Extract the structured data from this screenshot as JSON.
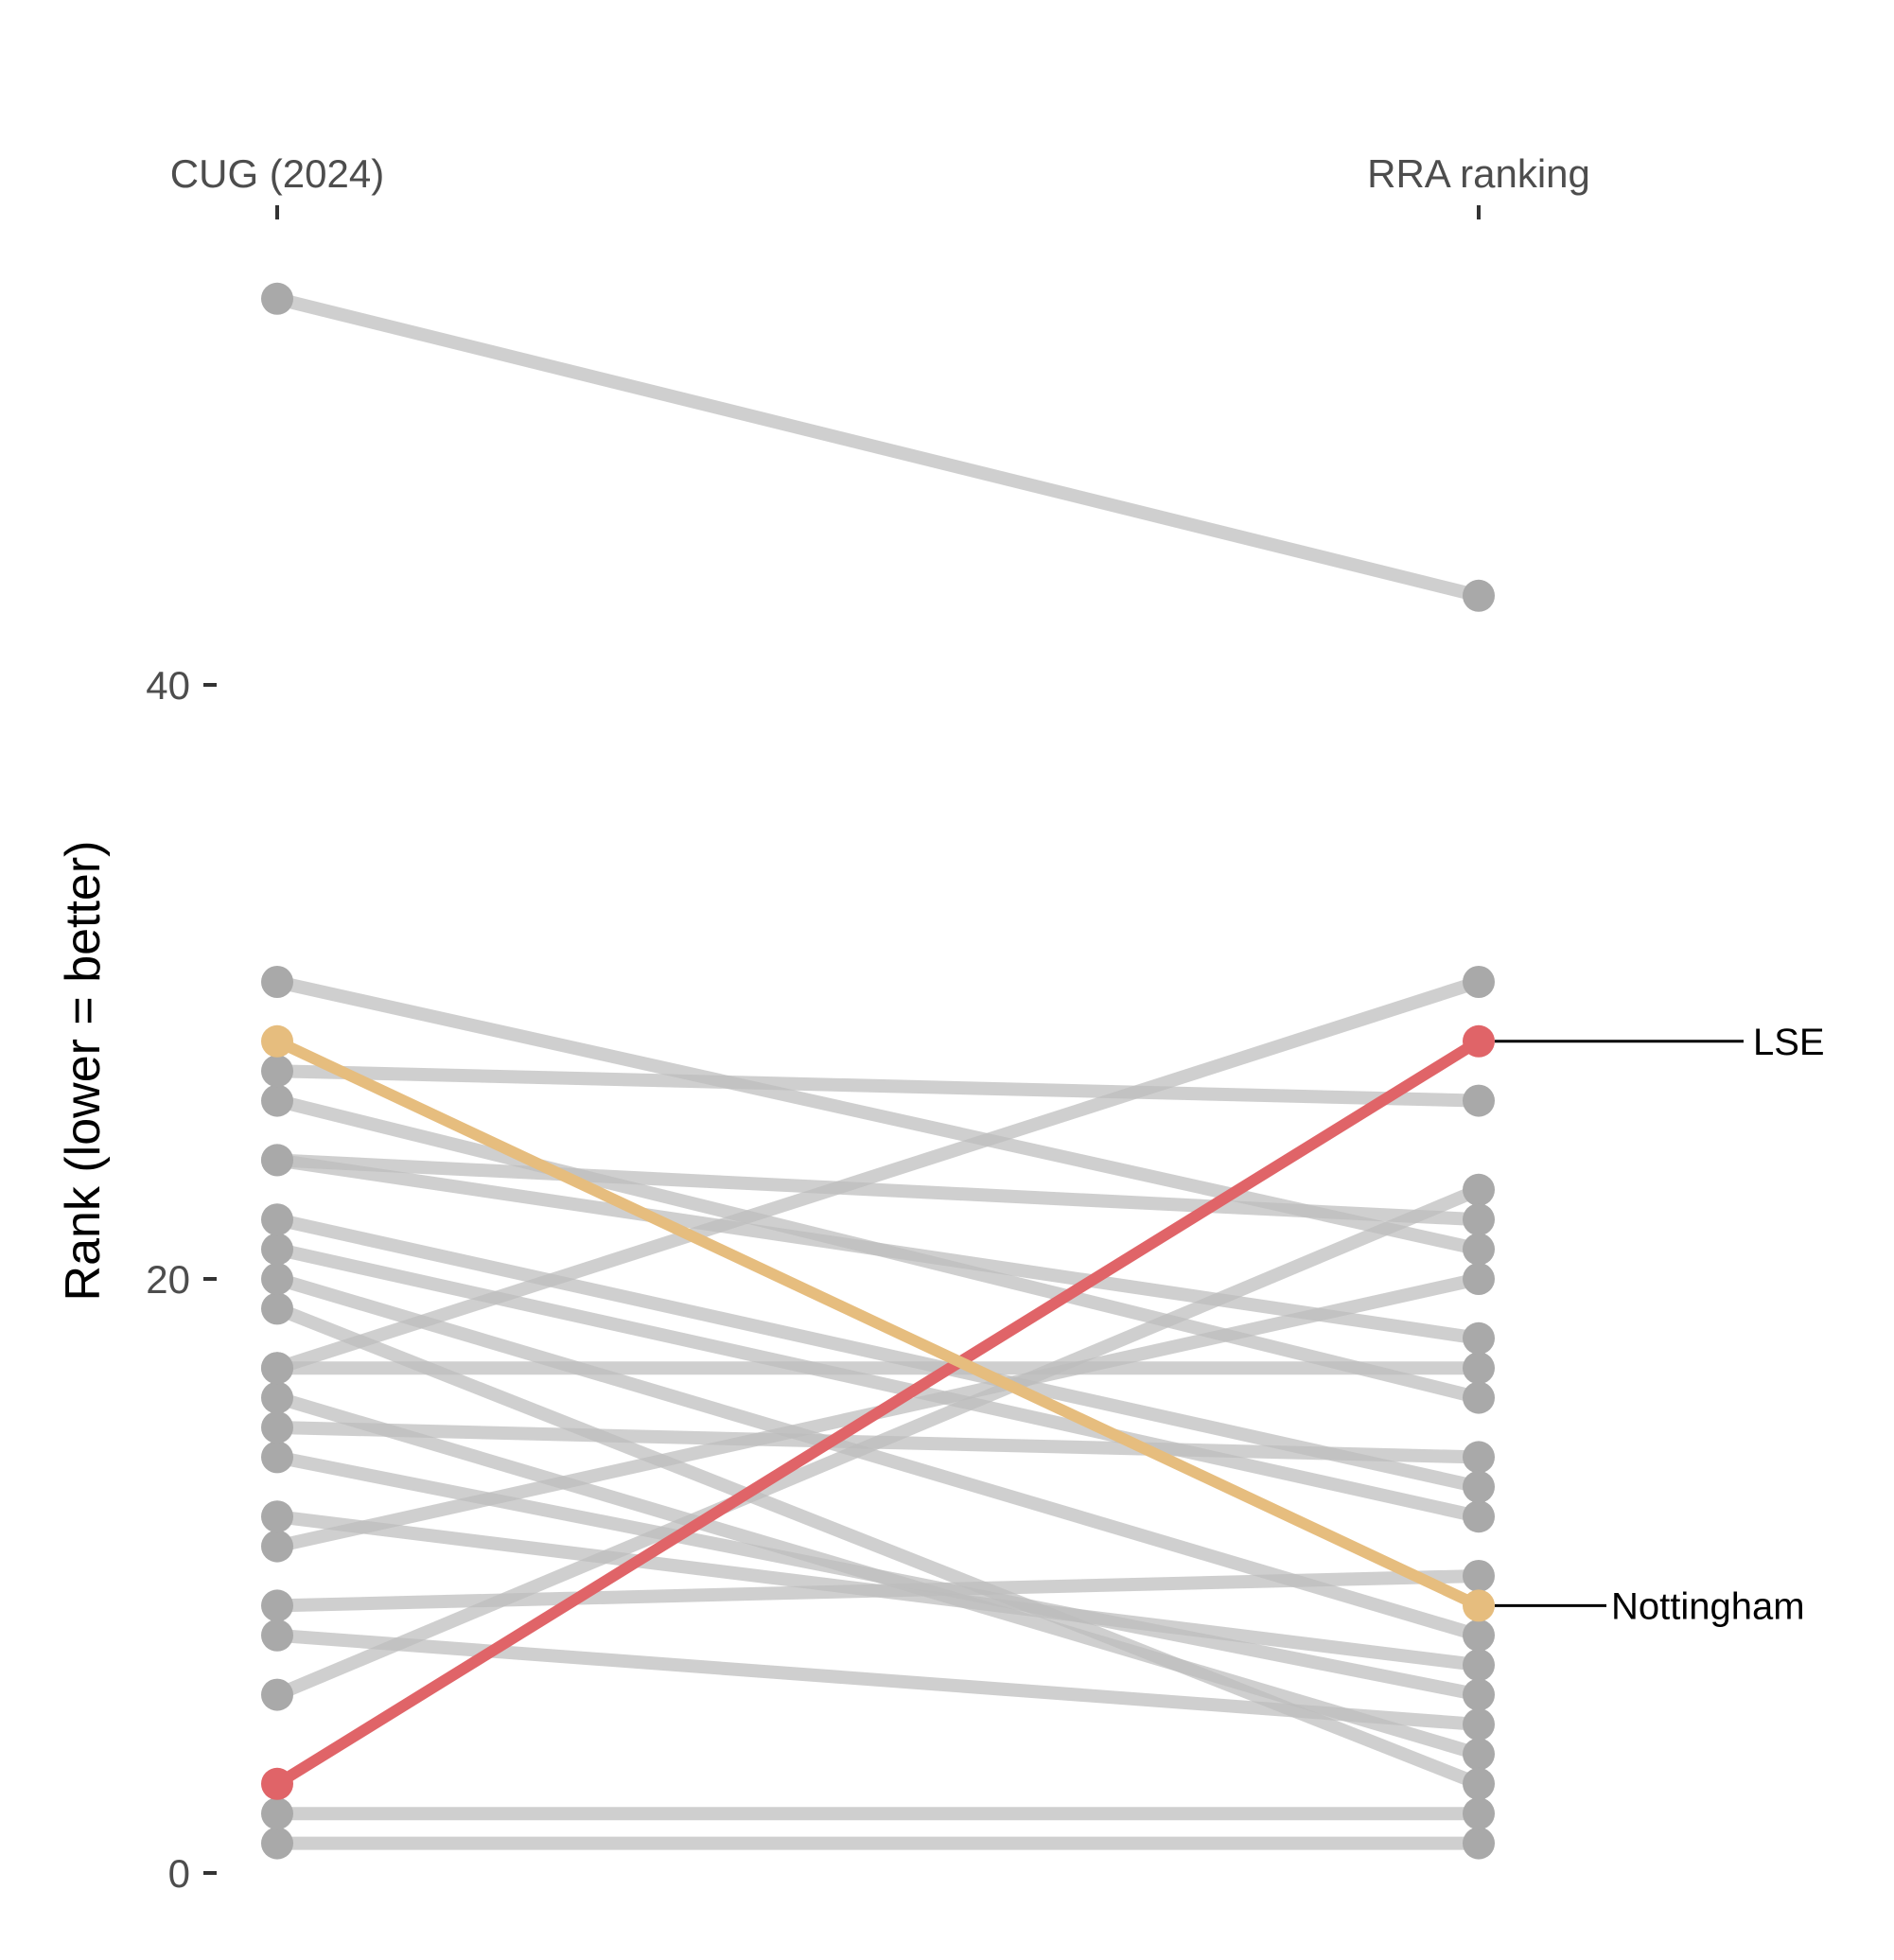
{
  "chart_data": {
    "type": "line",
    "title": "",
    "xlabel": "",
    "ylabel": "Rank (lower = better)",
    "x_categories": [
      "CUG (2024)",
      "RRA ranking"
    ],
    "y_axis": {
      "ticks": [
        0,
        20,
        40
      ],
      "ylim": [
        0,
        53
      ],
      "position": "left"
    },
    "grid": false,
    "legend": "none",
    "colors": {
      "base": "#bdbdbd",
      "base_point": "#a9a9a9",
      "lse": "#e06468",
      "nottingham": "#e6bd7e",
      "annotation": "#000000"
    },
    "series": [
      {
        "values": [
          1,
          1
        ]
      },
      {
        "values": [
          2,
          2
        ]
      },
      {
        "values": [
          3,
          28
        ],
        "highlight": "lse"
      },
      {
        "values": [
          6,
          23
        ]
      },
      {
        "values": [
          8,
          5
        ]
      },
      {
        "values": [
          9,
          10
        ]
      },
      {
        "values": [
          11,
          20
        ]
      },
      {
        "values": [
          12,
          7
        ]
      },
      {
        "values": [
          14,
          6
        ]
      },
      {
        "values": [
          15,
          14
        ]
      },
      {
        "values": [
          16,
          4
        ]
      },
      {
        "values": [
          17,
          17
        ]
      },
      {
        "values": [
          17,
          30
        ]
      },
      {
        "values": [
          19,
          3
        ]
      },
      {
        "values": [
          20,
          8
        ]
      },
      {
        "values": [
          21,
          12
        ]
      },
      {
        "values": [
          22,
          13
        ]
      },
      {
        "values": [
          24,
          18
        ]
      },
      {
        "values": [
          24,
          22
        ]
      },
      {
        "values": [
          26,
          16
        ]
      },
      {
        "values": [
          27,
          26
        ]
      },
      {
        "values": [
          28,
          9
        ],
        "highlight": "nottingham"
      },
      {
        "values": [
          30,
          21
        ]
      },
      {
        "values": [
          53,
          43
        ]
      }
    ],
    "annotations": [
      {
        "text": "LSE",
        "series_index": 2
      },
      {
        "text": "Nottingham",
        "series_index": 21
      }
    ]
  }
}
